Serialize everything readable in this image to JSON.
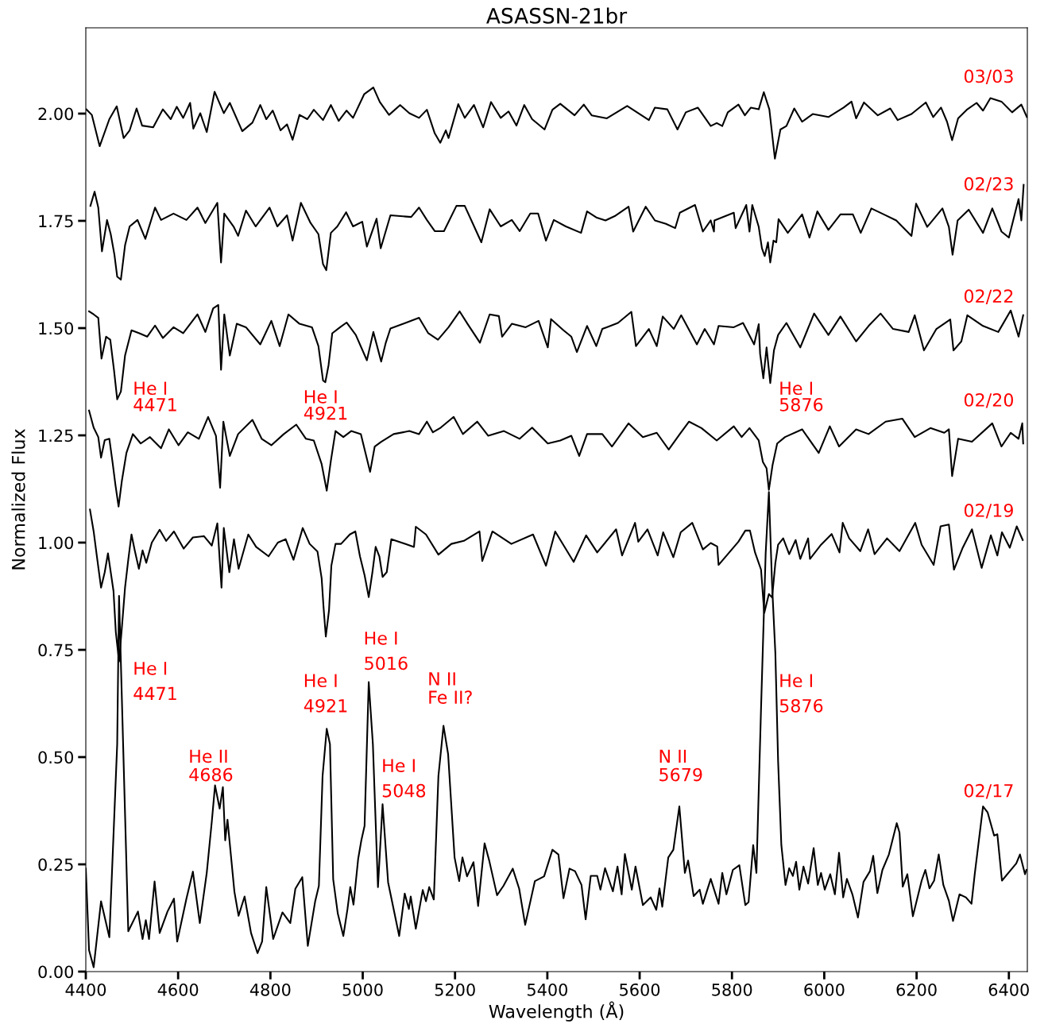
{
  "chart_data": {
    "type": "line",
    "title": "ASASSN-21br",
    "xlabel": "Wavelength (Å)",
    "ylabel": "Normalized Flux",
    "xlim": [
      4400,
      6440
    ],
    "ylim": [
      0,
      2.2
    ],
    "xticks": [
      4400,
      4600,
      4800,
      5000,
      5200,
      5400,
      5600,
      5800,
      6000,
      6200,
      6400
    ],
    "yticks": [
      {
        "value": 0,
        "label": "0.00"
      },
      {
        "value": 0.25,
        "label": "0.25"
      },
      {
        "value": 0.5,
        "label": "0.50"
      },
      {
        "value": 0.75,
        "label": "0.75"
      },
      {
        "value": 1.0,
        "label": "1.00"
      },
      {
        "value": 1.25,
        "label": "1.25"
      },
      {
        "value": 1.5,
        "label": "1.50"
      },
      {
        "value": 1.75,
        "label": "1.75"
      },
      {
        "value": 2.0,
        "label": "2.00"
      }
    ],
    "grid": false,
    "marker": "none",
    "line_style": "solid",
    "series": [
      {
        "name": "02/17",
        "color": "#000000",
        "x": [
          4400,
          4407,
          4417,
          4433,
          4451,
          4468,
          4472,
          4492,
          4513,
          4523,
          4530,
          4537,
          4549,
          4560,
          4577,
          4591,
          4598,
          4618,
          4632,
          4647,
          4662,
          4673,
          4680,
          4690,
          4697,
          4702,
          4707,
          4722,
          4731,
          4744,
          4758,
          4772,
          4782,
          4791,
          4806,
          4826,
          4843,
          4854,
          4869,
          4881,
          4897,
          4905,
          4913,
          4922,
          4929,
          4936,
          4946,
          4958,
          4967,
          4973,
          4980,
          4990,
          4997,
          5004,
          5013,
          5022,
          5033,
          5043,
          5055,
          5079,
          5091,
          5100,
          5104,
          5115,
          5130,
          5137,
          5144,
          5154,
          5164,
          5175,
          5185,
          5199,
          5209,
          5216,
          5226,
          5240,
          5250,
          5264,
          5274,
          5291,
          5305,
          5325,
          5339,
          5352,
          5373,
          5393,
          5411,
          5424,
          5435,
          5448,
          5460,
          5474,
          5483,
          5494,
          5508,
          5515,
          5525,
          5542,
          5552,
          5561,
          5568,
          5583,
          5591,
          5607,
          5624,
          5636,
          5643,
          5649,
          5662,
          5673,
          5686,
          5698,
          5705,
          5717,
          5730,
          5737,
          5754,
          5771,
          5779,
          5788,
          5802,
          5816,
          5829,
          5836,
          5846,
          5853,
          5863,
          5873,
          5880,
          5887,
          5894,
          5900,
          5907,
          5916,
          5924,
          5932,
          5939,
          5946,
          5955,
          5965,
          5977,
          5986,
          5993,
          6001,
          6013,
          6023,
          6032,
          6041,
          6049,
          6061,
          6073,
          6085,
          6099,
          6106,
          6115,
          6126,
          6140,
          6157,
          6163,
          6170,
          6180,
          6192,
          6211,
          6219,
          6228,
          6238,
          6248,
          6258,
          6270,
          6279,
          6293,
          6307,
          6319,
          6326,
          6344,
          6354,
          6368,
          6375,
          6385,
          6402,
          6416,
          6424,
          6435,
          6438
        ],
        "values": [
          0.24,
          0.05,
          0.01,
          0.164,
          0.08,
          0.53,
          0.876,
          0.094,
          0.14,
          0.076,
          0.12,
          0.076,
          0.21,
          0.09,
          0.14,
          0.17,
          0.07,
          0.17,
          0.233,
          0.113,
          0.23,
          0.35,
          0.434,
          0.38,
          0.43,
          0.306,
          0.354,
          0.186,
          0.13,
          0.175,
          0.09,
          0.043,
          0.07,
          0.197,
          0.076,
          0.138,
          0.113,
          0.193,
          0.22,
          0.06,
          0.164,
          0.2,
          0.456,
          0.566,
          0.53,
          0.215,
          0.135,
          0.083,
          0.146,
          0.197,
          0.156,
          0.262,
          0.306,
          0.34,
          0.675,
          0.53,
          0.197,
          0.39,
          0.208,
          0.083,
          0.182,
          0.146,
          0.175,
          0.1,
          0.19,
          0.164,
          0.197,
          0.168,
          0.456,
          0.573,
          0.507,
          0.266,
          0.211,
          0.266,
          0.222,
          0.255,
          0.153,
          0.299,
          0.259,
          0.178,
          0.2,
          0.24,
          0.193,
          0.109,
          0.211,
          0.222,
          0.284,
          0.273,
          0.171,
          0.24,
          0.234,
          0.202,
          0.122,
          0.223,
          0.223,
          0.191,
          0.241,
          0.187,
          0.245,
          0.18,
          0.274,
          0.191,
          0.245,
          0.155,
          0.173,
          0.144,
          0.194,
          0.151,
          0.266,
          0.284,
          0.385,
          0.23,
          0.259,
          0.176,
          0.191,
          0.158,
          0.216,
          0.158,
          0.23,
          0.18,
          0.237,
          0.248,
          0.155,
          0.162,
          0.295,
          0.23,
          0.613,
          0.974,
          1.118,
          0.9,
          0.743,
          0.49,
          0.295,
          0.202,
          0.241,
          0.223,
          0.256,
          0.191,
          0.245,
          0.205,
          0.288,
          0.202,
          0.23,
          0.191,
          0.227,
          0.18,
          0.277,
          0.173,
          0.216,
          0.18,
          0.126,
          0.209,
          0.234,
          0.27,
          0.183,
          0.237,
          0.273,
          0.346,
          0.324,
          0.198,
          0.227,
          0.129,
          0.212,
          0.237,
          0.194,
          0.212,
          0.273,
          0.202,
          0.165,
          0.118,
          0.18,
          0.173,
          0.158,
          0.227,
          0.385,
          0.371,
          0.317,
          0.32,
          0.212,
          0.234,
          0.252,
          0.273,
          0.227,
          0.237
        ]
      },
      {
        "name": "02/19",
        "color": "#000000",
        "x": [
          4409,
          4417,
          4424,
          4433,
          4441,
          4448,
          4455,
          4460,
          4465,
          4472,
          4478,
          4485,
          4492,
          4499,
          4506,
          4515,
          4523,
          4531,
          4543,
          4560,
          4574,
          4591,
          4612,
          4632,
          4656,
          4673,
          4685,
          4694,
          4699,
          4711,
          4721,
          4731,
          4752,
          4769,
          4796,
          4816,
          4833,
          4850,
          4870,
          4885,
          4902,
          4911,
          4915,
          4920,
          4927,
          4932,
          4941,
          4953,
          4972,
          4984,
          4994,
          5004,
          5013,
          5021,
          5028,
          5036,
          5043,
          5052,
          5062,
          5111,
          5115,
          5137,
          5164,
          5192,
          5219,
          5253,
          5259,
          5281,
          5322,
          5369,
          5397,
          5417,
          5457,
          5484,
          5508,
          5549,
          5562,
          5590,
          5597,
          5617,
          5639,
          5651,
          5673,
          5689,
          5714,
          5737,
          5754,
          5768,
          5771,
          5814,
          5829,
          5839,
          5850,
          5863,
          5870,
          5880,
          5887,
          5894,
          5900,
          5911,
          5924,
          5938,
          5948,
          5965,
          5969,
          5993,
          6016,
          6033,
          6040,
          6054,
          6078,
          6095,
          6109,
          6136,
          6163,
          6197,
          6211,
          6237,
          6252,
          6270,
          6281,
          6300,
          6320,
          6341,
          6361,
          6375,
          6385,
          6402,
          6417,
          6430
        ],
        "values": [
          1.077,
          1.026,
          0.968,
          0.895,
          0.931,
          0.975,
          0.924,
          0.887,
          0.792,
          0.723,
          0.8,
          0.895,
          0.96,
          1.019,
          0.982,
          0.939,
          0.982,
          0.953,
          1.0,
          1.03,
          1.004,
          1.026,
          0.986,
          1.012,
          1.015,
          0.993,
          1.045,
          0.895,
          1.034,
          0.931,
          1.008,
          0.939,
          1.019,
          0.99,
          0.968,
          1.0,
          1.008,
          0.96,
          1.034,
          0.997,
          0.979,
          0.917,
          0.851,
          0.781,
          0.843,
          0.946,
          0.997,
          0.997,
          1.019,
          1.026,
          0.968,
          0.924,
          0.873,
          0.931,
          0.99,
          0.968,
          0.92,
          0.931,
          1.008,
          0.99,
          1.037,
          1.019,
          0.972,
          0.997,
          1.004,
          1.026,
          0.957,
          1.026,
          0.997,
          1.019,
          0.946,
          1.026,
          0.955,
          1.017,
          0.977,
          1.031,
          0.97,
          1.046,
          1.002,
          1.031,
          0.97,
          1.024,
          0.966,
          1.024,
          1.046,
          0.984,
          0.999,
          0.991,
          0.948,
          1.002,
          1.028,
          1.028,
          0.977,
          0.937,
          0.836,
          0.88,
          0.872,
          0.952,
          0.995,
          1.01,
          0.973,
          1.006,
          0.962,
          1.01,
          0.962,
          0.995,
          1.02,
          0.977,
          1.046,
          1.01,
          0.98,
          1.031,
          0.973,
          1.01,
          0.98,
          1.046,
          0.995,
          0.948,
          1.038,
          1.042,
          0.937,
          0.988,
          1.031,
          0.941,
          1.017,
          0.97,
          1.024,
          0.988,
          1.038,
          1.006
        ]
      },
      {
        "name": "02/20",
        "color": "#000000",
        "x": [
          4407,
          4417,
          4427,
          4433,
          4441,
          4451,
          4458,
          4464,
          4471,
          4478,
          4488,
          4502,
          4519,
          4539,
          4563,
          4580,
          4601,
          4621,
          4645,
          4665,
          4682,
          4691,
          4698,
          4712,
          4730,
          4761,
          4781,
          4802,
          4829,
          4856,
          4877,
          4894,
          4911,
          4922,
          4931,
          4941,
          4958,
          4975,
          4996,
          5006,
          5016,
          5026,
          5040,
          5067,
          5101,
          5122,
          5139,
          5152,
          5169,
          5197,
          5217,
          5248,
          5272,
          5306,
          5340,
          5367,
          5401,
          5428,
          5452,
          5469,
          5486,
          5519,
          5540,
          5576,
          5607,
          5637,
          5663,
          5687,
          5707,
          5734,
          5767,
          5804,
          5821,
          5838,
          5858,
          5867,
          5875,
          5880,
          5888,
          5898,
          5915,
          5952,
          5988,
          6012,
          6032,
          6069,
          6096,
          6133,
          6169,
          6196,
          6230,
          6260,
          6270,
          6277,
          6290,
          6320,
          6364,
          6384,
          6404,
          6421,
          6429,
          6431
        ],
        "values": [
          1.308,
          1.268,
          1.246,
          1.198,
          1.239,
          1.242,
          1.187,
          1.136,
          1.084,
          1.143,
          1.209,
          1.253,
          1.231,
          1.246,
          1.22,
          1.264,
          1.227,
          1.257,
          1.242,
          1.293,
          1.249,
          1.128,
          1.282,
          1.202,
          1.253,
          1.286,
          1.242,
          1.227,
          1.253,
          1.275,
          1.242,
          1.238,
          1.183,
          1.121,
          1.191,
          1.26,
          1.246,
          1.26,
          1.253,
          1.209,
          1.165,
          1.224,
          1.235,
          1.253,
          1.26,
          1.253,
          1.282,
          1.257,
          1.268,
          1.293,
          1.253,
          1.282,
          1.249,
          1.26,
          1.242,
          1.268,
          1.231,
          1.238,
          1.249,
          1.202,
          1.253,
          1.253,
          1.224,
          1.278,
          1.246,
          1.256,
          1.217,
          1.253,
          1.282,
          1.267,
          1.238,
          1.271,
          1.246,
          1.267,
          1.238,
          1.188,
          1.173,
          1.123,
          1.181,
          1.231,
          1.246,
          1.264,
          1.209,
          1.271,
          1.224,
          1.264,
          1.253,
          1.282,
          1.289,
          1.246,
          1.267,
          1.256,
          1.264,
          1.155,
          1.242,
          1.235,
          1.278,
          1.224,
          1.256,
          1.242,
          1.278,
          1.231
        ]
      },
      {
        "name": "02/22",
        "color": "#000000",
        "x": [
          4407,
          4417,
          4427,
          4434,
          4444,
          4453,
          4461,
          4468,
          4476,
          4485,
          4499,
          4516,
          4533,
          4550,
          4567,
          4590,
          4611,
          4642,
          4659,
          4676,
          4687,
          4693,
          4700,
          4712,
          4727,
          4747,
          4778,
          4802,
          4820,
          4839,
          4863,
          4890,
          4904,
          4914,
          4919,
          4926,
          4934,
          4951,
          4965,
          4985,
          5009,
          5023,
          5040,
          5050,
          5060,
          5105,
          5122,
          5142,
          5163,
          5186,
          5210,
          5227,
          5254,
          5275,
          5295,
          5302,
          5323,
          5353,
          5381,
          5401,
          5408,
          5435,
          5452,
          5464,
          5486,
          5506,
          5519,
          5553,
          5582,
          5592,
          5620,
          5637,
          5650,
          5674,
          5690,
          5724,
          5741,
          5761,
          5771,
          5804,
          5824,
          5848,
          5858,
          5861,
          5868,
          5875,
          5883,
          5891,
          5900,
          5918,
          5948,
          5978,
          6009,
          6035,
          6069,
          6096,
          6122,
          6149,
          6183,
          6196,
          6216,
          6243,
          6273,
          6280,
          6297,
          6310,
          6344,
          6377,
          6404,
          6421,
          6431
        ],
        "values": [
          1.539,
          1.532,
          1.524,
          1.429,
          1.48,
          1.473,
          1.403,
          1.334,
          1.352,
          1.436,
          1.495,
          1.488,
          1.48,
          1.506,
          1.477,
          1.502,
          1.488,
          1.532,
          1.491,
          1.546,
          1.554,
          1.403,
          1.532,
          1.436,
          1.51,
          1.502,
          1.462,
          1.517,
          1.458,
          1.532,
          1.51,
          1.502,
          1.458,
          1.378,
          1.374,
          1.414,
          1.488,
          1.502,
          1.513,
          1.484,
          1.425,
          1.491,
          1.422,
          1.466,
          1.499,
          1.517,
          1.524,
          1.488,
          1.473,
          1.502,
          1.539,
          1.51,
          1.466,
          1.532,
          1.528,
          1.48,
          1.51,
          1.502,
          1.517,
          1.455,
          1.521,
          1.495,
          1.48,
          1.444,
          1.505,
          1.458,
          1.498,
          1.512,
          1.538,
          1.458,
          1.498,
          1.458,
          1.527,
          1.498,
          1.53,
          1.462,
          1.498,
          1.462,
          1.505,
          1.502,
          1.512,
          1.462,
          1.509,
          1.44,
          1.383,
          1.455,
          1.372,
          1.448,
          1.484,
          1.512,
          1.455,
          1.534,
          1.484,
          1.527,
          1.469,
          1.505,
          1.534,
          1.498,
          1.491,
          1.53,
          1.448,
          1.498,
          1.52,
          1.448,
          1.469,
          1.53,
          1.505,
          1.491,
          1.541,
          1.48,
          1.53
        ]
      },
      {
        "name": "02/23",
        "color": "#000000",
        "x": [
          4410,
          4419,
          4427,
          4435,
          4446,
          4454,
          4462,
          4468,
          4476,
          4485,
          4495,
          4512,
          4529,
          4550,
          4563,
          4590,
          4618,
          4642,
          4659,
          4685,
          4693,
          4700,
          4720,
          4730,
          4747,
          4768,
          4798,
          4815,
          4836,
          4848,
          4866,
          4887,
          4904,
          4914,
          4921,
          4931,
          4945,
          4964,
          4979,
          4999,
          5009,
          5030,
          5039,
          5060,
          5105,
          5122,
          5139,
          5156,
          5176,
          5203,
          5221,
          5238,
          5257,
          5275,
          5299,
          5323,
          5340,
          5363,
          5380,
          5397,
          5414,
          5440,
          5473,
          5486,
          5506,
          5526,
          5546,
          5576,
          5586,
          5613,
          5633,
          5657,
          5677,
          5687,
          5720,
          5737,
          5754,
          5761,
          5762,
          5804,
          5808,
          5831,
          5838,
          5844,
          5858,
          5865,
          5871,
          5878,
          5883,
          5890,
          5896,
          5901,
          5921,
          5952,
          5968,
          5985,
          6009,
          6035,
          6062,
          6079,
          6102,
          6129,
          6156,
          6189,
          6199,
          6223,
          6256,
          6270,
          6278,
          6289,
          6313,
          6344,
          6364,
          6384,
          6400,
          6421,
          6427,
          6432
        ],
        "values": [
          1.785,
          1.818,
          1.781,
          1.679,
          1.752,
          1.719,
          1.671,
          1.62,
          1.613,
          1.693,
          1.737,
          1.752,
          1.708,
          1.781,
          1.752,
          1.767,
          1.752,
          1.781,
          1.745,
          1.792,
          1.653,
          1.767,
          1.737,
          1.715,
          1.774,
          1.737,
          1.781,
          1.737,
          1.763,
          1.704,
          1.792,
          1.745,
          1.719,
          1.649,
          1.635,
          1.722,
          1.737,
          1.77,
          1.737,
          1.748,
          1.69,
          1.755,
          1.686,
          1.763,
          1.759,
          1.781,
          1.752,
          1.726,
          1.726,
          1.785,
          1.785,
          1.745,
          1.7,
          1.777,
          1.737,
          1.752,
          1.726,
          1.767,
          1.767,
          1.704,
          1.752,
          1.737,
          1.722,
          1.772,
          1.758,
          1.751,
          1.761,
          1.783,
          1.725,
          1.783,
          1.751,
          1.743,
          1.733,
          1.769,
          1.787,
          1.725,
          1.751,
          1.725,
          1.751,
          1.769,
          1.733,
          1.787,
          1.725,
          1.787,
          1.736,
          1.686,
          1.668,
          1.7,
          1.653,
          1.704,
          1.7,
          1.754,
          1.722,
          1.765,
          1.711,
          1.772,
          1.729,
          1.765,
          1.765,
          1.722,
          1.779,
          1.765,
          1.751,
          1.715,
          1.79,
          1.736,
          1.779,
          1.736,
          1.671,
          1.751,
          1.776,
          1.722,
          1.779,
          1.725,
          1.711,
          1.801,
          1.751,
          1.834
        ]
      },
      {
        "name": "03/03",
        "color": "#000000",
        "x": [
          4401,
          4413,
          4430,
          4451,
          4467,
          4482,
          4495,
          4510,
          4522,
          4546,
          4567,
          4584,
          4597,
          4611,
          4626,
          4633,
          4648,
          4662,
          4679,
          4699,
          4712,
          4739,
          4761,
          4778,
          4791,
          4805,
          4822,
          4836,
          4848,
          4863,
          4880,
          4894,
          4914,
          4931,
          4948,
          4965,
          4979,
          5003,
          5023,
          5037,
          5057,
          5081,
          5101,
          5122,
          5139,
          5156,
          5168,
          5180,
          5186,
          5207,
          5221,
          5241,
          5261,
          5278,
          5299,
          5316,
          5333,
          5350,
          5367,
          5394,
          5411,
          5428,
          5459,
          5479,
          5496,
          5529,
          5573,
          5620,
          5633,
          5660,
          5682,
          5700,
          5726,
          5754,
          5767,
          5779,
          5791,
          5814,
          5828,
          5841,
          5858,
          5869,
          5881,
          5893,
          5905,
          5918,
          5935,
          5952,
          5975,
          6009,
          6042,
          6059,
          6069,
          6086,
          6116,
          6143,
          6159,
          6189,
          6220,
          6236,
          6253,
          6266,
          6277,
          6290,
          6310,
          6330,
          6344,
          6360,
          6384,
          6407,
          6427,
          6439
        ],
        "values": [
          2.01,
          1.997,
          1.924,
          1.987,
          2.017,
          1.943,
          1.961,
          2.012,
          1.972,
          1.968,
          2.01,
          1.987,
          2.016,
          1.99,
          2.025,
          1.965,
          2.001,
          1.957,
          2.051,
          2.001,
          2.025,
          1.959,
          1.979,
          2.02,
          1.987,
          2.007,
          1.961,
          1.975,
          1.939,
          1.997,
          1.987,
          2.009,
          1.985,
          2.02,
          1.983,
          2.007,
          1.99,
          2.045,
          2.061,
          2.027,
          1.997,
          2.02,
          2.001,
          1.99,
          2.009,
          1.954,
          1.932,
          1.961,
          1.943,
          2.022,
          1.99,
          2.02,
          1.968,
          2.027,
          1.99,
          2.005,
          1.972,
          2.02,
          1.987,
          1.963,
          2.009,
          2.023,
          1.996,
          2.021,
          1.996,
          1.989,
          2.018,
          1.985,
          2.014,
          2.01,
          1.963,
          2.003,
          2.014,
          1.971,
          1.978,
          1.971,
          2.003,
          2.021,
          1.996,
          2.014,
          2.01,
          2.05,
          2.01,
          1.895,
          1.963,
          1.971,
          2.012,
          1.981,
          1.999,
          1.992,
          2.014,
          2.028,
          1.989,
          2.026,
          1.996,
          2.012,
          1.985,
          1.999,
          2.026,
          1.992,
          2.014,
          1.981,
          1.938,
          1.989,
          2.01,
          2.025,
          2.007,
          2.036,
          2.028,
          2.003,
          2.021,
          1.992
        ]
      }
    ],
    "annotations": [
      "He I\n4471",
      "He I\n4921",
      "He I\n5876",
      "He I\n4471",
      "He II\n4686",
      "He I\n4921",
      "He I\n5016",
      "N II\nFe II?",
      "He I\n5048",
      "N II\n5679",
      "He I\n5876"
    ]
  }
}
